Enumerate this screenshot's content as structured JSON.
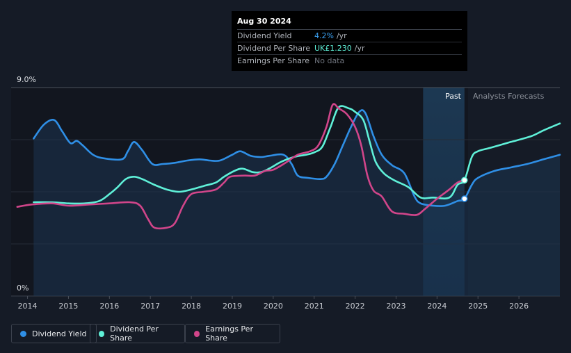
{
  "tooltip": {
    "date": "Aug 30 2024",
    "rows": [
      {
        "label": "Dividend Yield",
        "value": "4.2%",
        "unit": "/yr",
        "color": "#3aa0f0"
      },
      {
        "label": "Dividend Per Share",
        "value": "UK£1.230",
        "unit": "/yr",
        "color": "#5ff0d8"
      },
      {
        "label": "Earnings Per Share",
        "value": "No data",
        "unit": "",
        "color": "#6e737c"
      }
    ]
  },
  "legend": [
    {
      "label": "Dividend Yield",
      "color": "#2f8fe6"
    },
    {
      "label": "Dividend Per Share",
      "color": "#5ff0d8"
    },
    {
      "label": "Earnings Per Share",
      "color": "#d1458a"
    }
  ],
  "chart_data": {
    "type": "line",
    "title": "",
    "xlabel": "",
    "ylabel": "",
    "xlim": [
      2013.6,
      2027.0
    ],
    "ylim": [
      0,
      9.0
    ],
    "y_tick_labels": [
      "9.0%",
      "0%"
    ],
    "x_ticks": [
      2014,
      2015,
      2016,
      2017,
      2018,
      2019,
      2020,
      2021,
      2022,
      2023,
      2024,
      2025,
      2026
    ],
    "regions": {
      "past_label": "Past",
      "forecast_label": "Analysts Forecasts",
      "divider_x": 2024.67,
      "shade_start_x": 2023.66
    },
    "grid": true,
    "series": [
      {
        "name": "Dividend Yield",
        "color": "#2f8fe6",
        "fill": true,
        "points": [
          [
            2014.15,
            6.8
          ],
          [
            2014.4,
            7.4
          ],
          [
            2014.65,
            7.6
          ],
          [
            2014.85,
            7.1
          ],
          [
            2015.05,
            6.6
          ],
          [
            2015.2,
            6.7
          ],
          [
            2015.35,
            6.5
          ],
          [
            2015.6,
            6.1
          ],
          [
            2015.85,
            5.95
          ],
          [
            2016.3,
            5.9
          ],
          [
            2016.45,
            6.25
          ],
          [
            2016.6,
            6.65
          ],
          [
            2016.8,
            6.3
          ],
          [
            2017.05,
            5.7
          ],
          [
            2017.3,
            5.7
          ],
          [
            2017.6,
            5.75
          ],
          [
            2017.9,
            5.85
          ],
          [
            2018.2,
            5.9
          ],
          [
            2018.45,
            5.85
          ],
          [
            2018.7,
            5.85
          ],
          [
            2019.0,
            6.1
          ],
          [
            2019.2,
            6.25
          ],
          [
            2019.45,
            6.05
          ],
          [
            2019.7,
            6.0
          ],
          [
            2019.9,
            6.05
          ],
          [
            2020.25,
            6.1
          ],
          [
            2020.45,
            5.7
          ],
          [
            2020.6,
            5.2
          ],
          [
            2020.85,
            5.1
          ],
          [
            2021.15,
            5.05
          ],
          [
            2021.3,
            5.15
          ],
          [
            2021.5,
            5.7
          ],
          [
            2021.7,
            6.5
          ],
          [
            2021.9,
            7.3
          ],
          [
            2022.1,
            7.95
          ],
          [
            2022.25,
            7.9
          ],
          [
            2022.45,
            6.9
          ],
          [
            2022.65,
            6.1
          ],
          [
            2022.9,
            5.65
          ],
          [
            2023.2,
            5.3
          ],
          [
            2023.45,
            4.3
          ],
          [
            2023.6,
            4.0
          ],
          [
            2023.9,
            3.9
          ],
          [
            2024.2,
            3.9
          ],
          [
            2024.5,
            4.1
          ],
          [
            2024.67,
            4.2
          ],
          [
            2024.85,
            4.8
          ],
          [
            2025.0,
            5.1
          ],
          [
            2025.4,
            5.4
          ],
          [
            2025.8,
            5.55
          ],
          [
            2026.2,
            5.7
          ],
          [
            2026.6,
            5.9
          ],
          [
            2027.0,
            6.1
          ]
        ]
      },
      {
        "name": "Dividend Per Share",
        "color": "#5ff0d8",
        "fill": false,
        "points": [
          [
            2014.15,
            4.05
          ],
          [
            2014.6,
            4.05
          ],
          [
            2015.0,
            4.0
          ],
          [
            2015.4,
            4.0
          ],
          [
            2015.75,
            4.1
          ],
          [
            2016.0,
            4.4
          ],
          [
            2016.2,
            4.7
          ],
          [
            2016.4,
            5.05
          ],
          [
            2016.6,
            5.15
          ],
          [
            2016.8,
            5.05
          ],
          [
            2017.1,
            4.8
          ],
          [
            2017.4,
            4.6
          ],
          [
            2017.7,
            4.5
          ],
          [
            2018.0,
            4.6
          ],
          [
            2018.3,
            4.75
          ],
          [
            2018.6,
            4.9
          ],
          [
            2018.8,
            5.15
          ],
          [
            2019.05,
            5.4
          ],
          [
            2019.25,
            5.5
          ],
          [
            2019.5,
            5.35
          ],
          [
            2019.7,
            5.35
          ],
          [
            2019.9,
            5.5
          ],
          [
            2020.2,
            5.8
          ],
          [
            2020.5,
            6.0
          ],
          [
            2020.8,
            6.1
          ],
          [
            2021.0,
            6.2
          ],
          [
            2021.2,
            6.45
          ],
          [
            2021.4,
            7.3
          ],
          [
            2021.6,
            8.15
          ],
          [
            2021.85,
            8.1
          ],
          [
            2022.0,
            7.95
          ],
          [
            2022.2,
            7.6
          ],
          [
            2022.35,
            6.7
          ],
          [
            2022.5,
            5.8
          ],
          [
            2022.7,
            5.3
          ],
          [
            2022.95,
            5.0
          ],
          [
            2023.3,
            4.7
          ],
          [
            2023.6,
            4.25
          ],
          [
            2023.9,
            4.25
          ],
          [
            2024.3,
            4.25
          ],
          [
            2024.5,
            4.8
          ],
          [
            2024.67,
            5.0
          ],
          [
            2024.85,
            6.0
          ],
          [
            2025.0,
            6.25
          ],
          [
            2025.3,
            6.4
          ],
          [
            2025.8,
            6.65
          ],
          [
            2026.3,
            6.9
          ],
          [
            2026.6,
            7.15
          ],
          [
            2027.0,
            7.45
          ]
        ]
      },
      {
        "name": "Earnings Per Share",
        "color": "#d1458a",
        "fill": false,
        "points": [
          [
            2013.75,
            3.85
          ],
          [
            2014.1,
            3.95
          ],
          [
            2014.6,
            4.0
          ],
          [
            2015.0,
            3.9
          ],
          [
            2015.5,
            3.95
          ],
          [
            2016.0,
            4.0
          ],
          [
            2016.5,
            4.05
          ],
          [
            2016.75,
            3.9
          ],
          [
            2016.95,
            3.3
          ],
          [
            2017.1,
            2.95
          ],
          [
            2017.4,
            2.95
          ],
          [
            2017.6,
            3.15
          ],
          [
            2017.8,
            3.9
          ],
          [
            2018.0,
            4.4
          ],
          [
            2018.3,
            4.5
          ],
          [
            2018.6,
            4.6
          ],
          [
            2018.8,
            4.9
          ],
          [
            2018.95,
            5.15
          ],
          [
            2019.3,
            5.2
          ],
          [
            2019.55,
            5.2
          ],
          [
            2019.8,
            5.4
          ],
          [
            2020.0,
            5.45
          ],
          [
            2020.3,
            5.75
          ],
          [
            2020.6,
            6.1
          ],
          [
            2020.9,
            6.25
          ],
          [
            2021.1,
            6.5
          ],
          [
            2021.3,
            7.3
          ],
          [
            2021.45,
            8.25
          ],
          [
            2021.6,
            8.1
          ],
          [
            2021.8,
            7.85
          ],
          [
            2022.0,
            7.3
          ],
          [
            2022.15,
            6.5
          ],
          [
            2022.3,
            5.2
          ],
          [
            2022.45,
            4.55
          ],
          [
            2022.65,
            4.3
          ],
          [
            2022.9,
            3.65
          ],
          [
            2023.2,
            3.55
          ],
          [
            2023.5,
            3.5
          ],
          [
            2023.7,
            3.75
          ],
          [
            2024.0,
            4.2
          ],
          [
            2024.3,
            4.6
          ],
          [
            2024.5,
            4.9
          ],
          [
            2024.67,
            5.0
          ]
        ]
      }
    ],
    "markers": [
      {
        "series": "Dividend Yield",
        "x": 2024.67,
        "y": 4.2
      },
      {
        "series": "Dividend Per Share",
        "x": 2024.67,
        "y": 5.0
      }
    ]
  }
}
